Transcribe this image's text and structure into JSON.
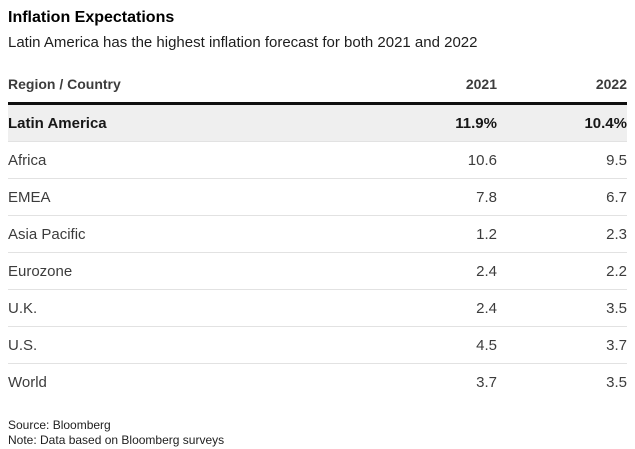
{
  "header": {
    "title": "Inflation Expectations",
    "subtitle": "Latin America has the highest inflation forecast for both 2021 and 2022"
  },
  "table": {
    "columns": [
      "Region / Country",
      "2021",
      "2022"
    ],
    "rows": [
      {
        "region": "Latin America",
        "y2021": "11.9%",
        "y2022": "10.4%",
        "highlight": true
      },
      {
        "region": "Africa",
        "y2021": "10.6",
        "y2022": "9.5",
        "highlight": false
      },
      {
        "region": "EMEA",
        "y2021": "7.8",
        "y2022": "6.7",
        "highlight": false
      },
      {
        "region": "Asia Pacific",
        "y2021": "1.2",
        "y2022": "2.3",
        "highlight": false
      },
      {
        "region": "Eurozone",
        "y2021": "2.4",
        "y2022": "2.2",
        "highlight": false
      },
      {
        "region": "U.K.",
        "y2021": "2.4",
        "y2022": "3.5",
        "highlight": false
      },
      {
        "region": "U.S.",
        "y2021": "4.5",
        "y2022": "3.7",
        "highlight": false
      },
      {
        "region": "World",
        "y2021": "3.7",
        "y2022": "3.5",
        "highlight": false
      }
    ]
  },
  "footer": {
    "source": "Source: Bloomberg",
    "note": "Note: Data based on Bloomberg surveys"
  },
  "colors": {
    "highlight_row_bg": "#efefef",
    "header_rule": "#0f0f0f",
    "row_divider": "#e2e2e2",
    "title_text": "#000000",
    "body_text": "#3c3c3c",
    "background": "#ffffff"
  },
  "chart_data": {
    "type": "table",
    "title": "Inflation Expectations",
    "subtitle": "Latin America has the highest inflation forecast for both 2021 and 2022",
    "columns": [
      "Region / Country",
      "2021",
      "2022"
    ],
    "units": "%",
    "rows": [
      [
        "Latin America",
        11.9,
        10.4
      ],
      [
        "Africa",
        10.6,
        9.5
      ],
      [
        "EMEA",
        7.8,
        6.7
      ],
      [
        "Asia Pacific",
        1.2,
        2.3
      ],
      [
        "Eurozone",
        2.4,
        2.2
      ],
      [
        "U.K.",
        2.4,
        3.5
      ],
      [
        "U.S.",
        4.5,
        3.7
      ],
      [
        "World",
        3.7,
        3.5
      ]
    ],
    "highlighted_row": "Latin America",
    "source": "Bloomberg",
    "note": "Data based on Bloomberg surveys",
    "layout": {
      "value_alignment": "right",
      "header_rule": "thick-black",
      "grid": "horizontal-only"
    }
  }
}
